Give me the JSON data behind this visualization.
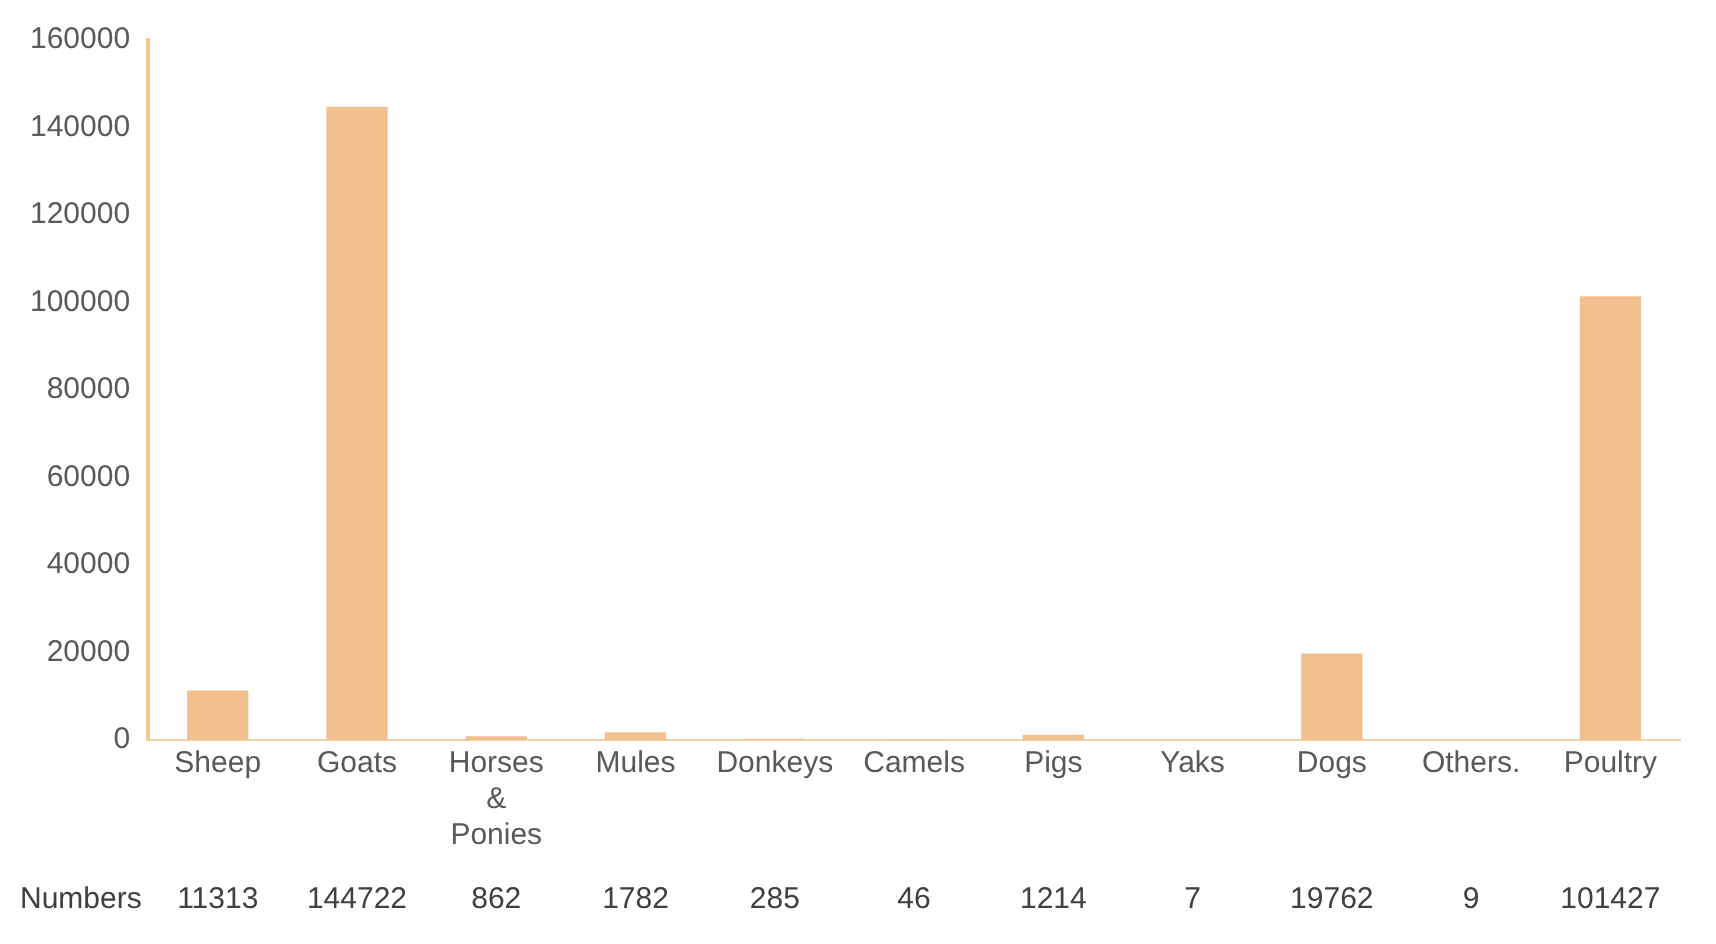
{
  "chart_data": {
    "type": "bar",
    "categories": [
      "Sheep",
      "Goats",
      "Horses & Ponies",
      "Mules",
      "Donkeys",
      "Camels",
      "Pigs",
      "Yaks",
      "Dogs",
      "Others.",
      "Poultry"
    ],
    "series": [
      {
        "name": "Numbers",
        "color": "#f2c08f",
        "values": [
          11313,
          144722,
          862,
          1782,
          285,
          46,
          1214,
          7,
          19762,
          9,
          101427
        ]
      }
    ],
    "ylim": [
      0,
      160000
    ],
    "yticks": [
      0,
      20000,
      40000,
      60000,
      80000,
      100000,
      120000,
      140000,
      160000
    ],
    "grid": false,
    "legend": false,
    "data_labels": true
  }
}
